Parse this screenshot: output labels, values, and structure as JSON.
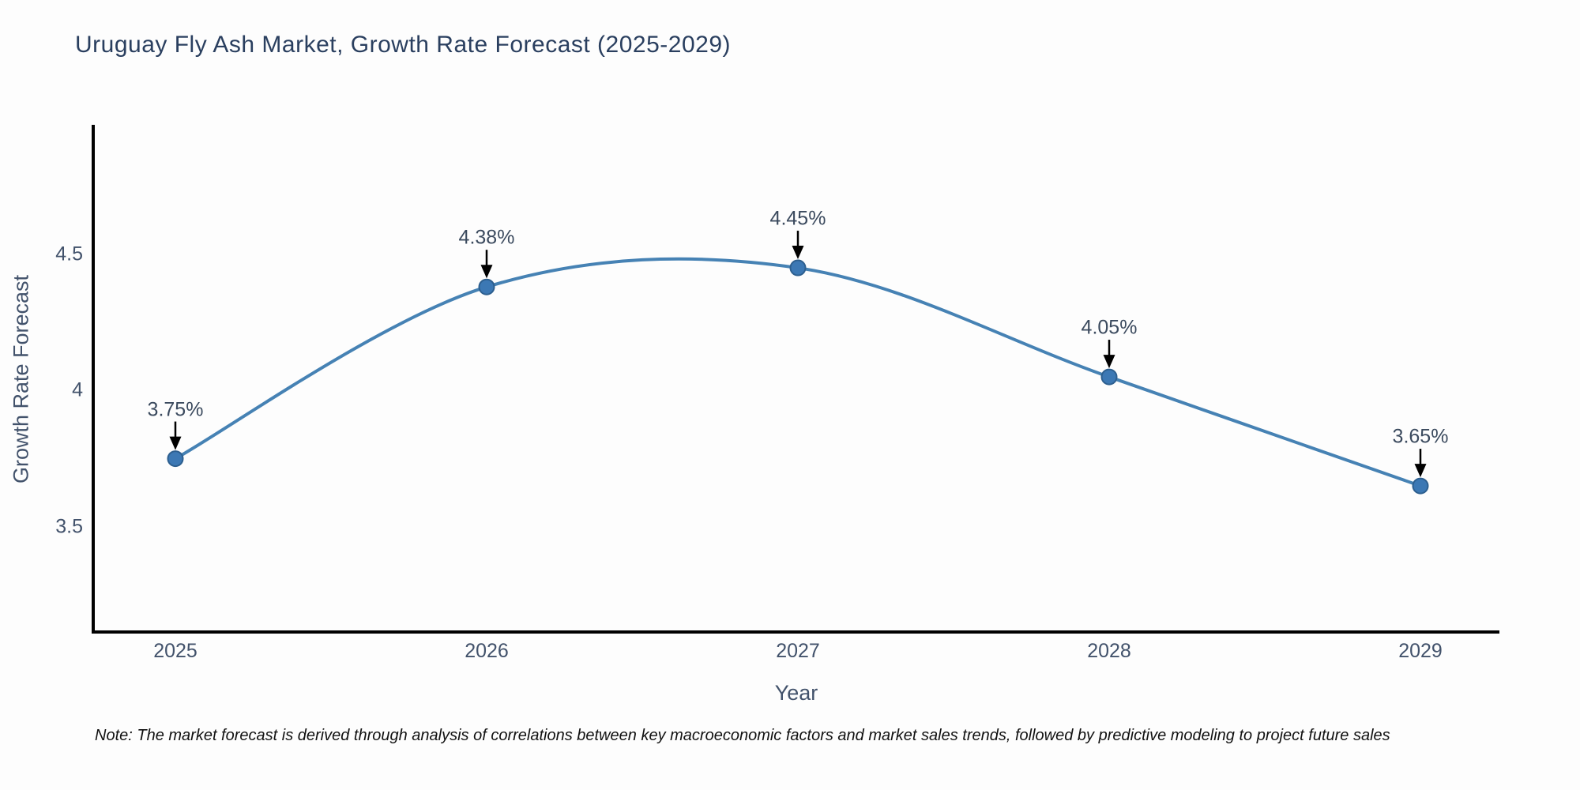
{
  "title": "Uruguay Fly Ash Market, Growth Rate Forecast (2025-2029)",
  "note": "Note: The market forecast is derived through analysis of correlations between key macroeconomic factors and market sales trends, followed by predictive modeling to project future sales",
  "chart_data": {
    "type": "line",
    "title": "Uruguay Fly Ash Market, Growth Rate Forecast (2025-2029)",
    "xlabel": "Year",
    "ylabel": "Growth Rate Forecast",
    "categories": [
      "2025",
      "2026",
      "2027",
      "2028",
      "2029"
    ],
    "values": [
      3.75,
      4.38,
      4.45,
      4.05,
      3.65
    ],
    "point_labels": [
      "3.75%",
      "4.38%",
      "4.45%",
      "4.05%",
      "3.65%"
    ],
    "yticks": [
      3.5,
      4,
      4.5
    ],
    "ytick_labels": [
      "3.5",
      "4",
      "4.5"
    ],
    "ylim": [
      3.114,
      4.969
    ],
    "line_style": "smooth-spline",
    "markers": true,
    "annotations": "value labels with downward black arrows onto each point",
    "grid": false,
    "legend": false,
    "colors": {
      "line": "#4682b4",
      "marker_fill": "#3c78b4",
      "marker_edge": "#2d5f8f",
      "arrow": "#000000",
      "spine": "#000000",
      "title_text": "#2a3f5f",
      "axis_text": "#42526b",
      "annotation_text": "#3b4a5e",
      "note_text": "#111111",
      "background": "#fdfdfd"
    }
  }
}
